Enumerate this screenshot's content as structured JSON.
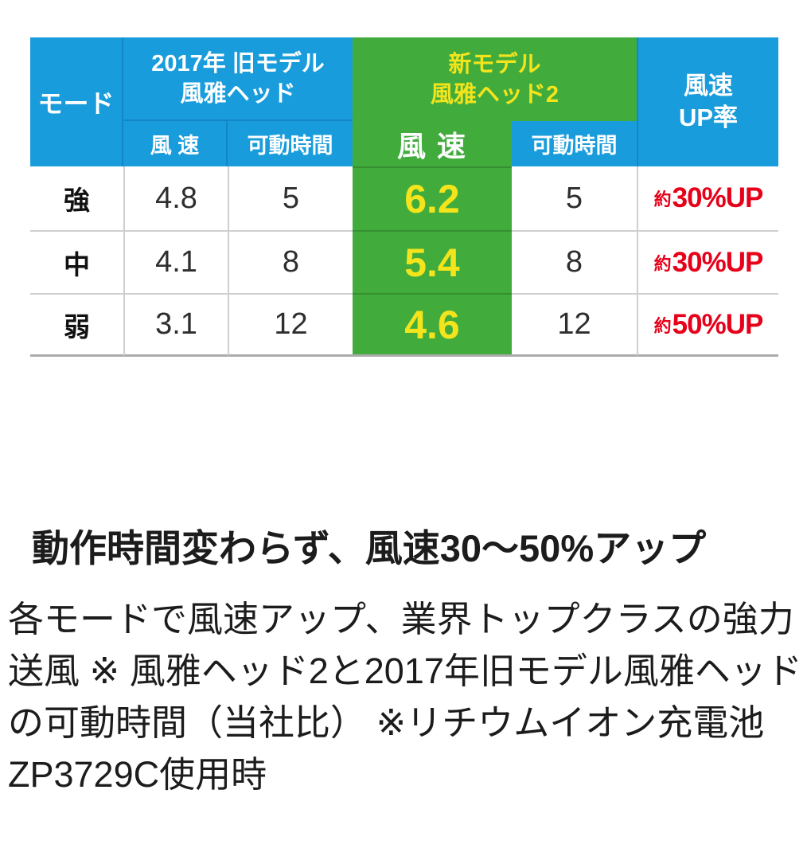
{
  "colors": {
    "header_blue": "#199CDB",
    "header_blue_divider": "#1486C6",
    "accent_green": "#41AC3C",
    "accent_yellow": "#F3E41C",
    "up_red": "#E60019",
    "text_dark": "#1C1C1C",
    "grid_gray": "#CFCFCF",
    "table_bottom_gray": "#ABABAB"
  },
  "table": {
    "headers": {
      "mode": "モード",
      "old_group_line1": "2017年 旧モデル",
      "old_group_line2": "風雅ヘッド",
      "new_group_line1": "新モデル",
      "new_group_line2": "風雅ヘッド2",
      "up_line1": "風速",
      "up_line2": "UP率",
      "old_speed": "風 速",
      "old_time": "可動時間",
      "new_speed": "風 速",
      "new_time": "可動時間"
    },
    "rows": [
      {
        "mode": "強",
        "old_speed": "4.8",
        "old_time": "5",
        "new_speed": "6.2",
        "new_time": "5",
        "up_prefix": "約",
        "up_value": "30%UP"
      },
      {
        "mode": "中",
        "old_speed": "4.1",
        "old_time": "8",
        "new_speed": "5.4",
        "new_time": "8",
        "up_prefix": "約",
        "up_value": "30%UP"
      },
      {
        "mode": "弱",
        "old_speed": "3.1",
        "old_time": "12",
        "new_speed": "4.6",
        "new_time": "12",
        "up_prefix": "約",
        "up_value": "50%UP"
      }
    ]
  },
  "headline": "動作時間変わらず、風速30〜50%アップ",
  "body_text": "各モードで風速アップ、業界トップクラスの強力送風 ※ 風雅ヘッド2と2017年旧モデル風雅ヘッドの可動時間（当社比） ※リチウムイオン充電池ZP3729C使用時",
  "chart_data": {
    "type": "table",
    "header": {
      "row1": [
        "モード",
        "2017年 旧モデル 風雅ヘッド",
        "新モデル 風雅ヘッド2",
        "風速UP率"
      ],
      "row2": [
        "風 速",
        "可動時間",
        "風 速",
        "可動時間"
      ]
    },
    "rows": [
      [
        "強",
        4.8,
        5,
        6.2,
        5,
        "約30%UP"
      ],
      [
        "中",
        4.1,
        8,
        5.4,
        8,
        "約30%UP"
      ],
      [
        "弱",
        3.1,
        12,
        4.6,
        12,
        "約50%UP"
      ]
    ]
  }
}
